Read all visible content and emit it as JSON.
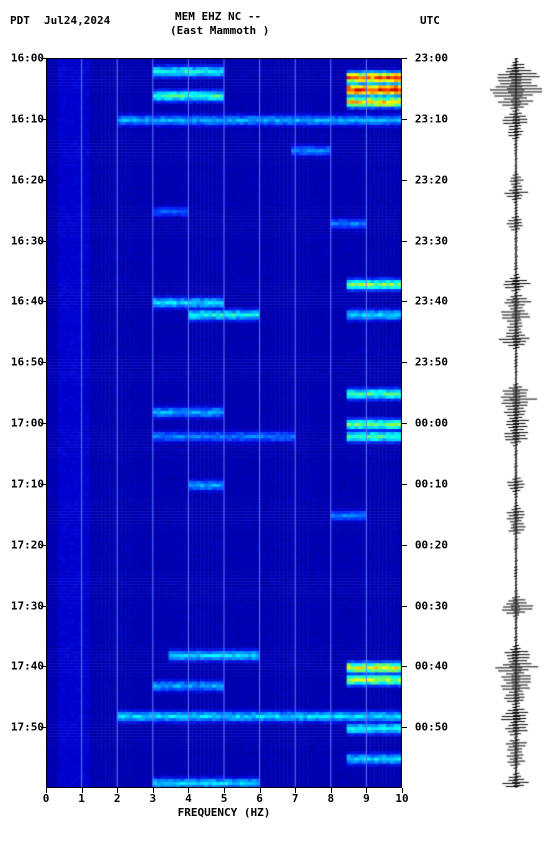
{
  "header": {
    "tz_left": "PDT",
    "date": "Jul24,2024",
    "station": "MEM EHZ NC --",
    "location": "(East Mammoth )",
    "tz_right": "UTC"
  },
  "spectrogram": {
    "type": "heatmap",
    "xlabel": "FREQUENCY (HZ)",
    "xlim": [
      0,
      10
    ],
    "xticks": [
      0,
      1,
      2,
      3,
      4,
      5,
      6,
      7,
      8,
      9,
      10
    ],
    "ylim_minutes": [
      0,
      120
    ],
    "background_color": "#0000a0",
    "grid_color": "#6080ff",
    "colormap": [
      "#00008b",
      "#0000cd",
      "#0033ff",
      "#0099ff",
      "#00ffff",
      "#66ff66",
      "#ffff00",
      "#ff9900",
      "#ff3300",
      "#cc0000"
    ],
    "left_ticks": [
      {
        "label": "16:00",
        "min": 0
      },
      {
        "label": "16:10",
        "min": 10
      },
      {
        "label": "16:20",
        "min": 20
      },
      {
        "label": "16:30",
        "min": 30
      },
      {
        "label": "16:40",
        "min": 40
      },
      {
        "label": "16:50",
        "min": 50
      },
      {
        "label": "17:00",
        "min": 60
      },
      {
        "label": "17:10",
        "min": 70
      },
      {
        "label": "17:20",
        "min": 80
      },
      {
        "label": "17:30",
        "min": 90
      },
      {
        "label": "17:40",
        "min": 100
      },
      {
        "label": "17:50",
        "min": 110
      }
    ],
    "right_ticks": [
      {
        "label": "23:00",
        "min": 0
      },
      {
        "label": "23:10",
        "min": 10
      },
      {
        "label": "23:20",
        "min": 20
      },
      {
        "label": "23:30",
        "min": 30
      },
      {
        "label": "23:40",
        "min": 40
      },
      {
        "label": "23:50",
        "min": 50
      },
      {
        "label": "00:00",
        "min": 60
      },
      {
        "label": "00:10",
        "min": 70
      },
      {
        "label": "00:20",
        "min": 80
      },
      {
        "label": "00:30",
        "min": 90
      },
      {
        "label": "00:40",
        "min": 100
      },
      {
        "label": "00:50",
        "min": 110
      }
    ],
    "hot_bands": [
      {
        "min": 2,
        "freq_lo": 3,
        "freq_hi": 5,
        "intensity": 0.45
      },
      {
        "min": 3,
        "freq_lo": 8.5,
        "freq_hi": 10,
        "intensity": 0.85
      },
      {
        "min": 5,
        "freq_lo": 8.5,
        "freq_hi": 10,
        "intensity": 0.95
      },
      {
        "min": 6,
        "freq_lo": 3,
        "freq_hi": 5,
        "intensity": 0.5
      },
      {
        "min": 7,
        "freq_lo": 8.5,
        "freq_hi": 10,
        "intensity": 0.7
      },
      {
        "min": 10,
        "freq_lo": 2,
        "freq_hi": 10,
        "intensity": 0.35
      },
      {
        "min": 15,
        "freq_lo": 7,
        "freq_hi": 8,
        "intensity": 0.3
      },
      {
        "min": 25,
        "freq_lo": 3,
        "freq_hi": 4,
        "intensity": 0.25
      },
      {
        "min": 27,
        "freq_lo": 8,
        "freq_hi": 9,
        "intensity": 0.3
      },
      {
        "min": 37,
        "freq_lo": 8.5,
        "freq_hi": 10,
        "intensity": 0.55
      },
      {
        "min": 40,
        "freq_lo": 3,
        "freq_hi": 5,
        "intensity": 0.4
      },
      {
        "min": 42,
        "freq_lo": 4,
        "freq_hi": 6,
        "intensity": 0.45
      },
      {
        "min": 42,
        "freq_lo": 8.5,
        "freq_hi": 10,
        "intensity": 0.4
      },
      {
        "min": 55,
        "freq_lo": 8.5,
        "freq_hi": 10,
        "intensity": 0.5
      },
      {
        "min": 58,
        "freq_lo": 3,
        "freq_hi": 5,
        "intensity": 0.35
      },
      {
        "min": 60,
        "freq_lo": 8.5,
        "freq_hi": 10,
        "intensity": 0.55
      },
      {
        "min": 62,
        "freq_lo": 3,
        "freq_hi": 7,
        "intensity": 0.3
      },
      {
        "min": 62,
        "freq_lo": 8.5,
        "freq_hi": 10,
        "intensity": 0.5
      },
      {
        "min": 70,
        "freq_lo": 4,
        "freq_hi": 5,
        "intensity": 0.35
      },
      {
        "min": 75,
        "freq_lo": 8,
        "freq_hi": 9,
        "intensity": 0.3
      },
      {
        "min": 98,
        "freq_lo": 3.5,
        "freq_hi": 6,
        "intensity": 0.4
      },
      {
        "min": 100,
        "freq_lo": 8.5,
        "freq_hi": 10,
        "intensity": 0.65
      },
      {
        "min": 102,
        "freq_lo": 8.5,
        "freq_hi": 10,
        "intensity": 0.6
      },
      {
        "min": 103,
        "freq_lo": 3,
        "freq_hi": 5,
        "intensity": 0.35
      },
      {
        "min": 108,
        "freq_lo": 2,
        "freq_hi": 10,
        "intensity": 0.4
      },
      {
        "min": 110,
        "freq_lo": 8.5,
        "freq_hi": 10,
        "intensity": 0.45
      },
      {
        "min": 115,
        "freq_lo": 8.5,
        "freq_hi": 10,
        "intensity": 0.4
      },
      {
        "min": 119,
        "freq_lo": 3,
        "freq_hi": 6,
        "intensity": 0.4
      }
    ]
  },
  "waveform": {
    "color": "#000000",
    "baseline_x": 0.5,
    "events": [
      {
        "min": 2,
        "amp": 0.5
      },
      {
        "min": 3,
        "amp": 0.8
      },
      {
        "min": 5,
        "amp": 0.95
      },
      {
        "min": 6,
        "amp": 0.7
      },
      {
        "min": 7,
        "amp": 0.6
      },
      {
        "min": 10,
        "amp": 0.5
      },
      {
        "min": 12,
        "amp": 0.3
      },
      {
        "min": 20,
        "amp": 0.25
      },
      {
        "min": 22,
        "amp": 0.4
      },
      {
        "min": 27,
        "amp": 0.3
      },
      {
        "min": 37,
        "amp": 0.45
      },
      {
        "min": 40,
        "amp": 0.5
      },
      {
        "min": 42,
        "amp": 0.55
      },
      {
        "min": 44,
        "amp": 0.3
      },
      {
        "min": 46,
        "amp": 0.6
      },
      {
        "min": 55,
        "amp": 0.5
      },
      {
        "min": 56,
        "amp": 0.7
      },
      {
        "min": 58,
        "amp": 0.4
      },
      {
        "min": 60,
        "amp": 0.5
      },
      {
        "min": 62,
        "amp": 0.45
      },
      {
        "min": 70,
        "amp": 0.35
      },
      {
        "min": 75,
        "amp": 0.4
      },
      {
        "min": 77,
        "amp": 0.3
      },
      {
        "min": 90,
        "amp": 0.6
      },
      {
        "min": 98,
        "amp": 0.5
      },
      {
        "min": 100,
        "amp": 0.7
      },
      {
        "min": 102,
        "amp": 0.6
      },
      {
        "min": 103,
        "amp": 0.5
      },
      {
        "min": 105,
        "amp": 0.4
      },
      {
        "min": 108,
        "amp": 0.55
      },
      {
        "min": 110,
        "amp": 0.45
      },
      {
        "min": 113,
        "amp": 0.4
      },
      {
        "min": 115,
        "amp": 0.35
      },
      {
        "min": 119,
        "amp": 0.5
      }
    ]
  }
}
